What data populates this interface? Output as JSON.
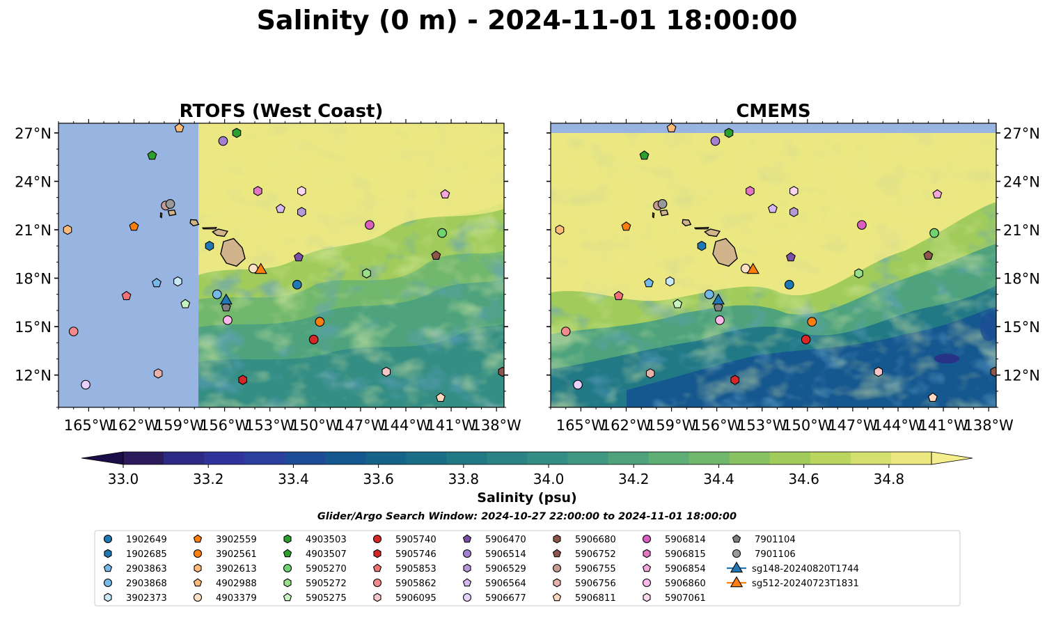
{
  "figure": {
    "title": "Salinity (0 m) - 2024-11-01 18:00:00",
    "search_window": "Glider/Argo Search Window: 2024-10-27 22:00:00 to 2024-11-01 18:00:00"
  },
  "colors": {
    "land": "#d2b48c",
    "no_data": "#98b4e0",
    "coast": "#000000"
  },
  "chart_data": [
    {
      "type": "heatmap",
      "title": "RTOFS (West Coast)",
      "xlim": [
        -167,
        -137.5
      ],
      "ylim": [
        10,
        27.6
      ],
      "x_ticks": [
        -165,
        -162,
        -159,
        -156,
        -153,
        -150,
        -147,
        -144,
        -141,
        -138
      ],
      "y_ticks": [
        12,
        15,
        18,
        21,
        24,
        27
      ],
      "x_tick_labels": [
        "165°W",
        "162°W",
        "159°W",
        "156°W",
        "153°W",
        "150°W",
        "147°W",
        "144°W",
        "141°W",
        "138°W"
      ],
      "y_tick_labels": [
        "12°N",
        "15°N",
        "18°N",
        "21°N",
        "24°N",
        "27°N"
      ],
      "y_axis_side": "left",
      "no_data_west_of_lon": -157.7
    },
    {
      "type": "heatmap",
      "title": "CMEMS",
      "xlim": [
        -167,
        -137.5
      ],
      "ylim": [
        10,
        27.6
      ],
      "x_ticks": [
        -165,
        -162,
        -159,
        -156,
        -153,
        -150,
        -147,
        -144,
        -141,
        -138
      ],
      "y_ticks": [
        12,
        15,
        18,
        21,
        24,
        27
      ],
      "x_tick_labels": [
        "165°W",
        "162°W",
        "159°W",
        "156°W",
        "153°W",
        "150°W",
        "147°W",
        "144°W",
        "141°W",
        "138°W"
      ],
      "y_tick_labels": [
        "12°N",
        "15°N",
        "18°N",
        "21°N",
        "24°N",
        "27°N"
      ],
      "y_axis_side": "right",
      "no_data_north_of_lat": 27.1
    }
  ],
  "colorbar": {
    "label": "Salinity (psu)",
    "range": [
      33.0,
      34.9
    ],
    "step": 0.1,
    "extend": "both",
    "tick_values": [
      33.0,
      33.2,
      33.4,
      33.6,
      33.8,
      34.0,
      34.2,
      34.4,
      34.6,
      34.8
    ],
    "tick_labels": [
      "33.0",
      "33.2",
      "33.4",
      "33.6",
      "33.8",
      "34.0",
      "34.2",
      "34.4",
      "34.6",
      "34.8"
    ],
    "colors": [
      "#2b1a5c",
      "#2d2a86",
      "#30349a",
      "#2b3f9e",
      "#1e4b96",
      "#15578f",
      "#166389",
      "#1b6e87",
      "#227986",
      "#2b8385",
      "#358e84",
      "#409882",
      "#4ea37d",
      "#5eae76",
      "#72b86c",
      "#88c262",
      "#a1cc5c",
      "#bbd65e",
      "#d3df6f",
      "#ebe882"
    ]
  },
  "islands": [
    {
      "name": "Hawaii",
      "lon": -155.5,
      "lat": 19.6
    },
    {
      "name": "Maui",
      "lon": -156.3,
      "lat": 20.8
    },
    {
      "name": "Molokai",
      "lon": -157.0,
      "lat": 21.1
    },
    {
      "name": "Oahu",
      "lon": -158.0,
      "lat": 21.45
    },
    {
      "name": "Kauai",
      "lon": -159.5,
      "lat": 22.05
    },
    {
      "name": "Niihau",
      "lon": -160.2,
      "lat": 21.9
    }
  ],
  "platforms": [
    {
      "id": "1902649",
      "shape": "circle",
      "color": "#1f77b4",
      "lon": -151.2,
      "lat": 17.6
    },
    {
      "id": "1902685",
      "shape": "hexagon",
      "color": "#1f77b4",
      "lon": -157.0,
      "lat": 20.0
    },
    {
      "id": "2903863",
      "shape": "pentagon",
      "color": "#74b9e8",
      "lon": -160.5,
      "lat": 17.7
    },
    {
      "id": "2903868",
      "shape": "circle",
      "color": "#74b9e8",
      "lon": -156.5,
      "lat": 17.0
    },
    {
      "id": "3902373",
      "shape": "hexagon",
      "color": "#c7e9f8",
      "lon": -159.1,
      "lat": 17.8
    },
    {
      "id": "3902559",
      "shape": "pentagon",
      "color": "#ff7f0e",
      "lon": -162.0,
      "lat": 21.2
    },
    {
      "id": "3902561",
      "shape": "circle",
      "color": "#ff7f0e",
      "lon": -149.7,
      "lat": 15.3
    },
    {
      "id": "3902613",
      "shape": "hexagon",
      "color": "#ffbb78",
      "lon": -166.4,
      "lat": 21.0
    },
    {
      "id": "4902988",
      "shape": "pentagon",
      "color": "#ffbb78",
      "lon": -159.0,
      "lat": 27.3
    },
    {
      "id": "4903379",
      "shape": "circle",
      "color": "#fde0c5",
      "lon": -154.1,
      "lat": 18.6
    },
    {
      "id": "4903503",
      "shape": "hexagon",
      "color": "#2ca02c",
      "lon": -155.2,
      "lat": 27.0
    },
    {
      "id": "4903507",
      "shape": "pentagon",
      "color": "#2ca02c",
      "lon": -160.8,
      "lat": 25.6
    },
    {
      "id": "5905270",
      "shape": "circle",
      "color": "#6fd36f",
      "lon": -141.6,
      "lat": 20.8
    },
    {
      "id": "5905272",
      "shape": "hexagon",
      "color": "#98df8a",
      "lon": -146.6,
      "lat": 18.3
    },
    {
      "id": "5905275",
      "shape": "pentagon",
      "color": "#c7f5c0",
      "lon": -158.6,
      "lat": 16.4
    },
    {
      "id": "5905740",
      "shape": "circle",
      "color": "#d62728",
      "lon": -150.1,
      "lat": 14.2
    },
    {
      "id": "5905746",
      "shape": "hexagon",
      "color": "#d62728",
      "lon": -154.8,
      "lat": 11.7
    },
    {
      "id": "5905853",
      "shape": "pentagon",
      "color": "#f07178",
      "lon": -162.5,
      "lat": 16.9
    },
    {
      "id": "5905862",
      "shape": "circle",
      "color": "#f28b8b",
      "lon": -166.0,
      "lat": 14.7
    },
    {
      "id": "5906095",
      "shape": "hexagon",
      "color": "#f7c6c7",
      "lon": -145.3,
      "lat": 12.2
    },
    {
      "id": "5906470",
      "shape": "pentagon",
      "color": "#7b4fa6",
      "lon": -151.1,
      "lat": 19.3
    },
    {
      "id": "5906514",
      "shape": "circle",
      "color": "#a57fd0",
      "lon": -156.1,
      "lat": 26.5
    },
    {
      "id": "5906529",
      "shape": "hexagon",
      "color": "#b59ad8",
      "lon": -150.9,
      "lat": 22.1
    },
    {
      "id": "5906564",
      "shape": "pentagon",
      "color": "#d7b8f0",
      "lon": -152.3,
      "lat": 22.3
    },
    {
      "id": "5906677",
      "shape": "circle",
      "color": "#e8d2fb",
      "lon": -165.2,
      "lat": 11.4
    },
    {
      "id": "5906680",
      "shape": "hexagon",
      "color": "#8c564b",
      "lon": -137.6,
      "lat": 12.2
    },
    {
      "id": "5906752",
      "shape": "pentagon",
      "color": "#8c564b",
      "lon": -142.0,
      "lat": 19.4
    },
    {
      "id": "5906755",
      "shape": "circle",
      "color": "#c49c94",
      "lon": -159.9,
      "lat": 22.5
    },
    {
      "id": "5906756",
      "shape": "hexagon",
      "color": "#e8b2a8",
      "lon": -160.4,
      "lat": 12.1
    },
    {
      "id": "5906811",
      "shape": "pentagon",
      "color": "#ffd9bf",
      "lon": -141.7,
      "lat": 10.6
    },
    {
      "id": "5906814",
      "shape": "circle",
      "color": "#d95fbf",
      "lon": -146.4,
      "lat": 21.3
    },
    {
      "id": "5906815",
      "shape": "hexagon",
      "color": "#e377c2",
      "lon": -153.8,
      "lat": 23.4
    },
    {
      "id": "5906854",
      "shape": "pentagon",
      "color": "#f4a7dc",
      "lon": -141.4,
      "lat": 23.2
    },
    {
      "id": "5906860",
      "shape": "circle",
      "color": "#fbb8e8",
      "lon": -155.8,
      "lat": 15.4
    },
    {
      "id": "5907061",
      "shape": "hexagon",
      "color": "#fcd7ef",
      "lon": -150.9,
      "lat": 23.4
    },
    {
      "id": "7901104",
      "shape": "pentagon",
      "color": "#7f7f7f",
      "lon": -155.9,
      "lat": 16.2
    },
    {
      "id": "7901106",
      "shape": "circle",
      "color": "#999999",
      "lon": -159.6,
      "lat": 22.6
    },
    {
      "id": "sg148-20240820T1744",
      "shape": "triangle",
      "color": "#1f77b4",
      "lon": -155.9,
      "lat": 16.6
    },
    {
      "id": "sg512-20240723T1831",
      "shape": "triangle",
      "color": "#ff7f0e",
      "lon": -153.6,
      "lat": 18.5
    }
  ]
}
